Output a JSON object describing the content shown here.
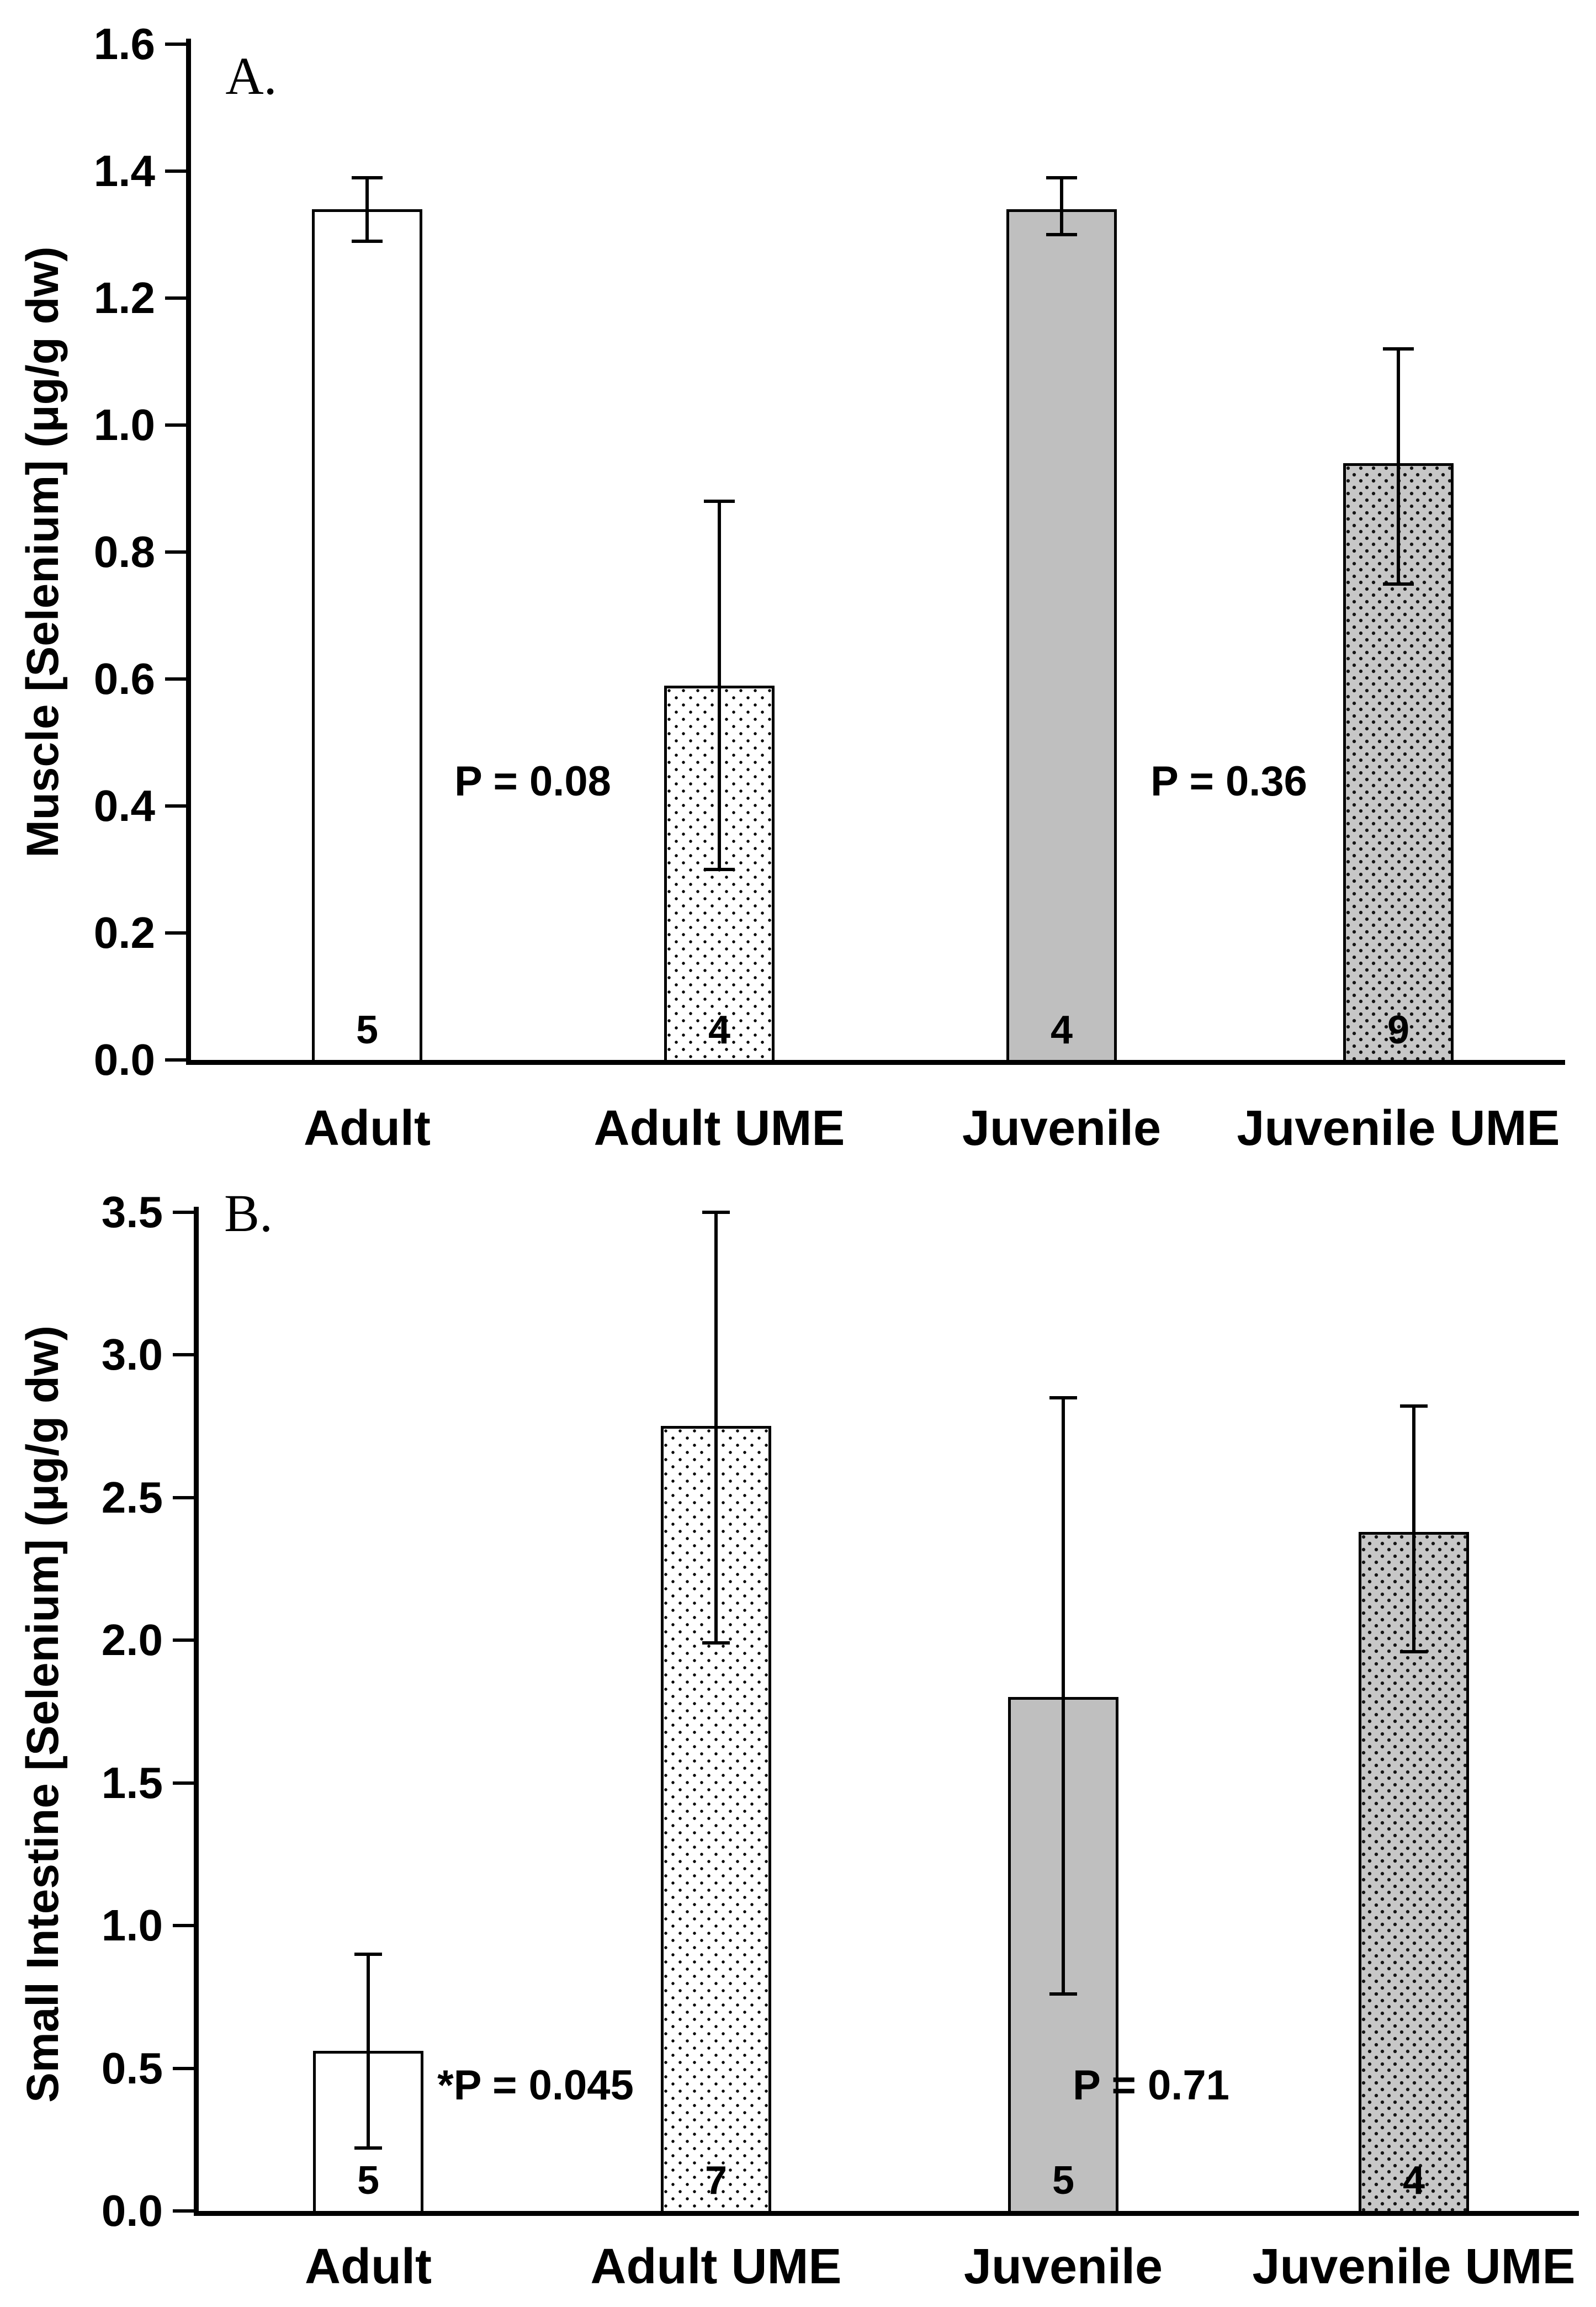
{
  "figure": {
    "background_color": "#ffffff",
    "text_color": "#000000",
    "bar_border_color": "#000000",
    "gray_fill_color": "#bfbfbf"
  },
  "chart_data": [
    {
      "type": "bar",
      "panel_label": "A.",
      "ylabel": "Muscle [Selenium] (μg/g dw)",
      "xlabel": "",
      "ylim": [
        0.0,
        1.6
      ],
      "ytick_labels": [
        "1.6",
        "1.4",
        "1.2",
        "1.0",
        "0.8",
        "0.6",
        "0.4",
        "0.2",
        "0.0"
      ],
      "ytick_values": [
        1.6,
        1.4,
        1.2,
        1.0,
        0.8,
        0.6,
        0.4,
        0.2,
        0.0
      ],
      "grid": false,
      "legend": "none",
      "categories": [
        "Adult",
        "Adult UME",
        "Juvenile",
        "Juvenile UME"
      ],
      "values": [
        1.34,
        0.59,
        1.34,
        0.94
      ],
      "error_low": [
        1.29,
        0.3,
        1.3,
        0.75
      ],
      "error_high": [
        1.39,
        0.88,
        1.39,
        1.12
      ],
      "sample_sizes": [
        "5",
        "4",
        "4",
        "9"
      ],
      "bar_fills": [
        "white",
        "stipple-light",
        "gray",
        "stipple-dark"
      ],
      "annotations": [
        {
          "text": "P = 0.08"
        },
        {
          "text": "P = 0.36"
        }
      ]
    },
    {
      "type": "bar",
      "panel_label": "B.",
      "ylabel": "Small Intestine [Selenium] (μg/g dw)",
      "xlabel": "",
      "ylim": [
        0.0,
        3.5
      ],
      "ytick_labels": [
        "3.5",
        "3.0",
        "2.5",
        "2.0",
        "1.5",
        "1.0",
        "0.5",
        "0.0"
      ],
      "ytick_values": [
        3.5,
        3.0,
        2.5,
        2.0,
        1.5,
        1.0,
        0.5,
        0.0
      ],
      "grid": false,
      "legend": "none",
      "categories": [
        "Adult",
        "Adult UME",
        "Juvenile",
        "Juvenile UME"
      ],
      "values": [
        0.56,
        2.75,
        1.8,
        2.38
      ],
      "error_low": [
        0.22,
        1.99,
        0.76,
        1.96
      ],
      "error_high": [
        0.9,
        3.5,
        2.85,
        2.82
      ],
      "sample_sizes": [
        "5",
        "7",
        "5",
        "4"
      ],
      "bar_fills": [
        "white",
        "stipple-light",
        "gray",
        "stipple-dark"
      ],
      "annotations": [
        {
          "text": "*P = 0.045"
        },
        {
          "text": "P = 0.71"
        }
      ]
    }
  ]
}
